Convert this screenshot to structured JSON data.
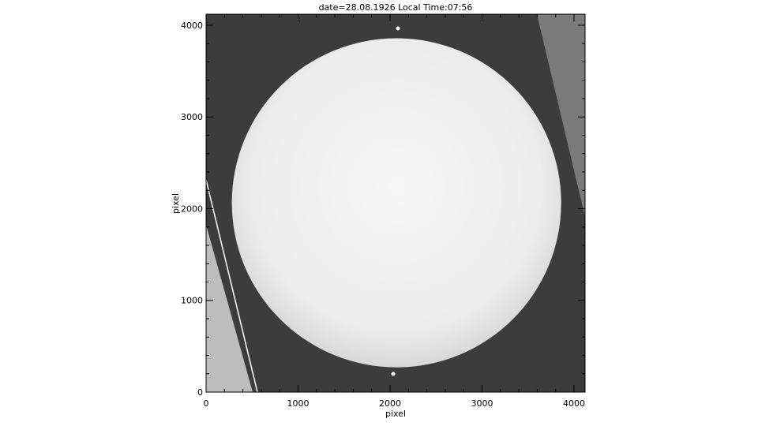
{
  "chart_data": {
    "type": "heatmap",
    "title": "date=28.08.1926 Local Time:07:56",
    "xlabel": "pixel",
    "ylabel": "pixel",
    "xlim": [
      0,
      4120
    ],
    "ylim": [
      0,
      4120
    ],
    "xticks": [
      0,
      1000,
      2000,
      3000,
      4000
    ],
    "yticks": [
      0,
      1000,
      2000,
      3000,
      4000
    ],
    "xtick_labels": [
      "0",
      "1000",
      "2000",
      "3000",
      "4000"
    ],
    "ytick_labels": [
      "0",
      "1000",
      "2000",
      "3000",
      "4000"
    ],
    "colormap": "grayscale",
    "solar_disk": {
      "center_x": 2070,
      "center_y": 2064,
      "radius": 1790
    },
    "colors": {
      "background": "#3c3c3c",
      "disk": "#f2f2f2",
      "outer_field": "#bdbdbd"
    }
  }
}
